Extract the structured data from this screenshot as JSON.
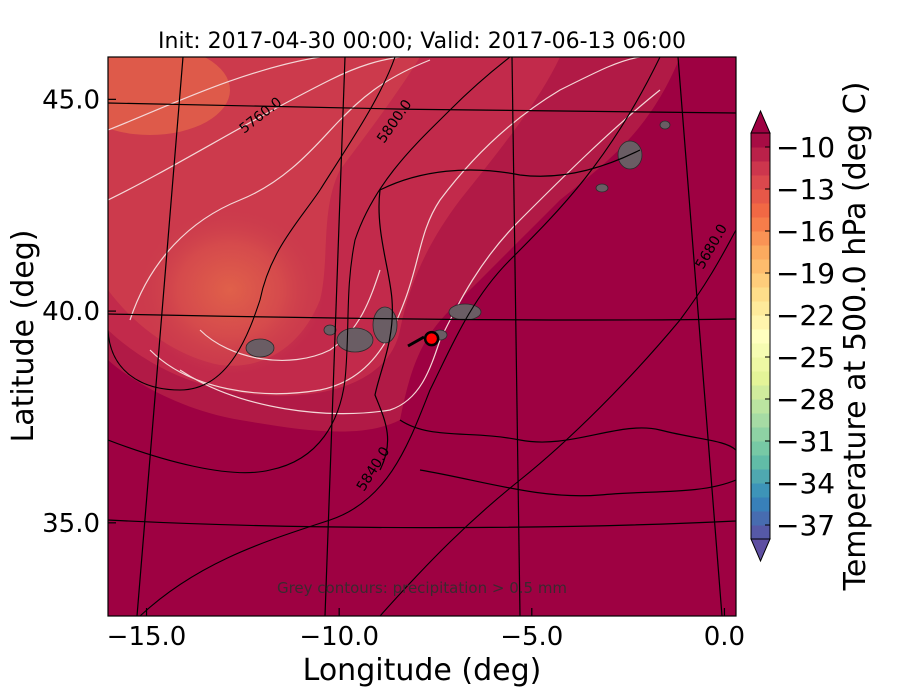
{
  "chart_data": {
    "type": "heatmap",
    "title": "Init: 2017-04-30 00:00; Valid: 2017-06-13 06:00",
    "xlabel": "Longitude (deg)",
    "ylabel": "Latitude (deg)",
    "xlim": [
      -16.0,
      0.3
    ],
    "ylim": [
      32.8,
      46.0
    ],
    "x_ticks": [
      -15.0,
      -10.0,
      -5.0,
      0.0
    ],
    "x_tick_labels": [
      "−15.0",
      "−10.0",
      "−5.0",
      "0.0"
    ],
    "y_ticks": [
      35.0,
      40.0,
      45.0
    ],
    "y_tick_labels": [
      "35.0",
      "40.0",
      "45.0"
    ],
    "contour_labels": [
      {
        "text": "5760.0",
        "value": 5760
      },
      {
        "text": "5800.0",
        "value": 5800
      },
      {
        "text": "5840.0",
        "value": 5840
      },
      {
        "text": "5680.0",
        "value": 5680
      }
    ],
    "warm_core_temperature_deg_c": -16,
    "background_temperature_deg_c": -10,
    "marker": {
      "lon": -7.6,
      "lat": 39.35,
      "color": "#ff0000"
    },
    "annotation": "Grey contours: precipitation > 0.5 mm",
    "colorbar": {
      "label": "Temperature at 500.0 hPa (deg C)",
      "min": -38,
      "max": -9,
      "extend": "both",
      "ticks": [
        -10,
        -13,
        -16,
        -19,
        -22,
        -25,
        -28,
        -31,
        -34,
        -37
      ],
      "tick_labels": [
        "−10",
        "−13",
        "−16",
        "−19",
        "−22",
        "−25",
        "−28",
        "−31",
        "−34",
        "−37"
      ],
      "colormap": "Spectral"
    }
  }
}
